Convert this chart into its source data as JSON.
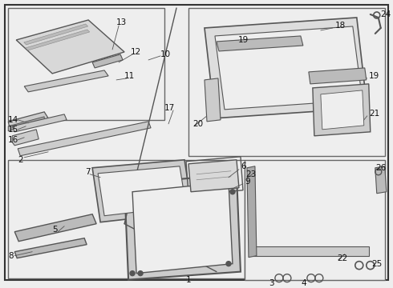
{
  "bg_color": "#eeeeee",
  "border_color": "#555555",
  "line_color": "#555555",
  "text_color": "#111111",
  "figsize": [
    4.9,
    3.6
  ],
  "dpi": 100
}
